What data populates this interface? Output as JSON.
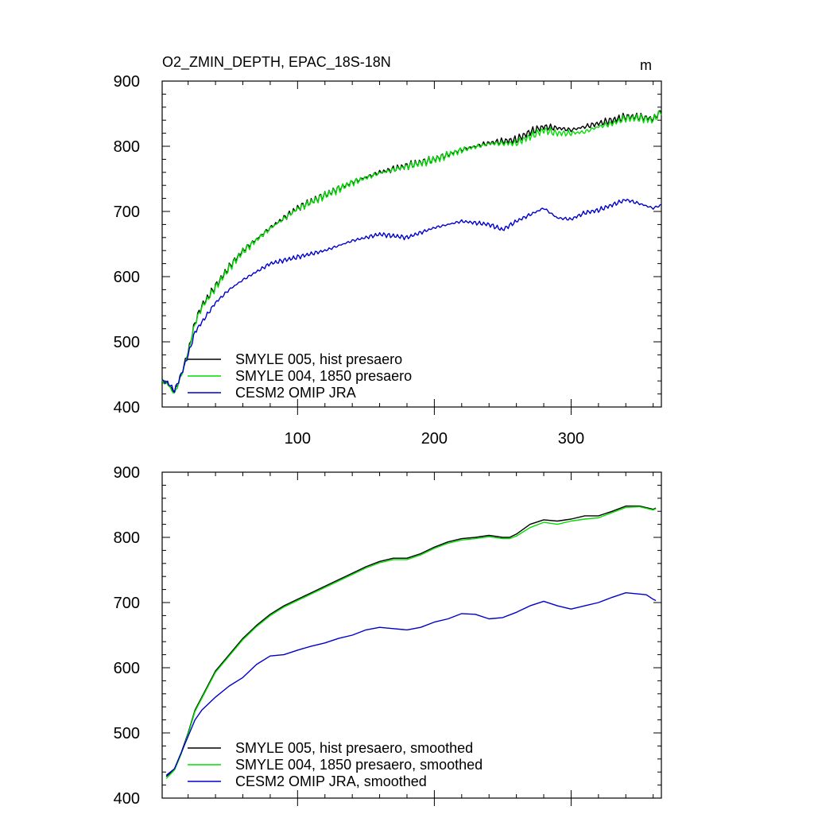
{
  "chart_data": [
    {
      "type": "line",
      "title": "O2_ZMIN_DEPTH, EPAC_18S-18N",
      "units": "m",
      "xlim": [
        1,
        366
      ],
      "ylim": [
        400,
        900
      ],
      "xticks": [
        100,
        200,
        300
      ],
      "yticks": [
        400,
        500,
        600,
        700,
        800,
        900
      ],
      "series": [
        {
          "name": "SMYLE 005, hist presaero",
          "color": "#000000",
          "x": [
            1,
            5,
            10,
            15,
            20,
            25,
            30,
            40,
            50,
            60,
            80,
            100,
            120,
            140,
            160,
            180,
            200,
            220,
            240,
            260,
            270,
            280,
            290,
            300,
            310,
            320,
            330,
            340,
            350,
            360,
            366
          ],
          "values": [
            440,
            436,
            423,
            450,
            485,
            530,
            555,
            585,
            615,
            640,
            675,
            705,
            725,
            745,
            760,
            770,
            780,
            795,
            805,
            810,
            822,
            830,
            828,
            825,
            830,
            835,
            840,
            845,
            845,
            842,
            855
          ]
        },
        {
          "name": "SMYLE 004, 1850 presaero",
          "color": "#00dd00",
          "x": [
            1,
            5,
            10,
            15,
            20,
            25,
            30,
            40,
            50,
            60,
            80,
            100,
            120,
            140,
            160,
            180,
            200,
            220,
            240,
            260,
            270,
            280,
            290,
            300,
            310,
            320,
            330,
            340,
            350,
            360,
            366
          ],
          "values": [
            440,
            435,
            420,
            448,
            483,
            528,
            553,
            583,
            613,
            638,
            674,
            704,
            724,
            744,
            759,
            769,
            779,
            794,
            804,
            805,
            815,
            825,
            820,
            820,
            822,
            830,
            835,
            843,
            843,
            840,
            853
          ]
        },
        {
          "name": "CESM2 OMIP JRA",
          "color": "#0000cc",
          "x": [
            1,
            5,
            10,
            15,
            20,
            25,
            30,
            40,
            50,
            60,
            80,
            100,
            120,
            140,
            160,
            180,
            200,
            220,
            240,
            250,
            260,
            280,
            290,
            300,
            310,
            320,
            330,
            340,
            350,
            360,
            366
          ],
          "values": [
            440,
            438,
            425,
            450,
            480,
            515,
            530,
            560,
            580,
            595,
            620,
            630,
            640,
            655,
            665,
            660,
            675,
            685,
            680,
            672,
            685,
            705,
            690,
            688,
            698,
            702,
            710,
            718,
            712,
            705,
            710
          ]
        }
      ]
    },
    {
      "type": "line",
      "title": "",
      "xlim": [
        1,
        366
      ],
      "ylim": [
        400,
        900
      ],
      "xticks": [
        100,
        200,
        300
      ],
      "yticks": [
        400,
        500,
        600,
        700,
        800,
        900
      ],
      "series": [
        {
          "name": "SMYLE 005, hist presaero, smoothed",
          "color": "#000000",
          "x": [
            4,
            10,
            15,
            20,
            25,
            30,
            35,
            40,
            50,
            60,
            70,
            80,
            90,
            100,
            110,
            120,
            130,
            140,
            150,
            160,
            170,
            180,
            190,
            200,
            210,
            220,
            230,
            240,
            250,
            255,
            260,
            270,
            280,
            290,
            300,
            310,
            320,
            330,
            340,
            350,
            360,
            362
          ],
          "values": [
            433,
            445,
            470,
            500,
            535,
            555,
            575,
            595,
            620,
            645,
            665,
            682,
            695,
            705,
            715,
            725,
            735,
            745,
            755,
            763,
            768,
            768,
            775,
            785,
            793,
            798,
            800,
            803,
            800,
            800,
            805,
            820,
            827,
            825,
            828,
            833,
            833,
            840,
            848,
            848,
            843,
            845
          ]
        },
        {
          "name": "SMYLE 004, 1850 presaero, smoothed",
          "color": "#00dd00",
          "x": [
            4,
            10,
            15,
            20,
            25,
            30,
            35,
            40,
            50,
            60,
            70,
            80,
            90,
            100,
            110,
            120,
            130,
            140,
            150,
            160,
            170,
            180,
            190,
            200,
            210,
            220,
            230,
            240,
            250,
            255,
            260,
            270,
            280,
            290,
            300,
            310,
            320,
            330,
            340,
            350,
            360,
            362
          ],
          "values": [
            430,
            443,
            468,
            498,
            533,
            553,
            573,
            593,
            618,
            643,
            663,
            680,
            693,
            703,
            713,
            723,
            733,
            743,
            753,
            761,
            766,
            766,
            773,
            783,
            791,
            796,
            798,
            801,
            798,
            798,
            802,
            815,
            823,
            820,
            825,
            828,
            830,
            838,
            846,
            847,
            842,
            844
          ]
        },
        {
          "name": "CESM2 OMIP JRA, smoothed",
          "color": "#0000cc",
          "x": [
            4,
            10,
            15,
            20,
            25,
            30,
            35,
            40,
            50,
            60,
            70,
            80,
            90,
            100,
            110,
            120,
            130,
            140,
            150,
            160,
            170,
            180,
            190,
            200,
            210,
            220,
            230,
            240,
            250,
            260,
            270,
            280,
            290,
            300,
            310,
            320,
            330,
            340,
            350,
            355,
            360,
            362
          ],
          "values": [
            435,
            445,
            470,
            495,
            520,
            535,
            545,
            555,
            572,
            585,
            605,
            618,
            620,
            627,
            633,
            638,
            645,
            650,
            658,
            662,
            660,
            658,
            662,
            670,
            675,
            683,
            682,
            675,
            677,
            685,
            695,
            702,
            695,
            690,
            695,
            700,
            708,
            715,
            713,
            712,
            705,
            703
          ]
        }
      ]
    }
  ]
}
